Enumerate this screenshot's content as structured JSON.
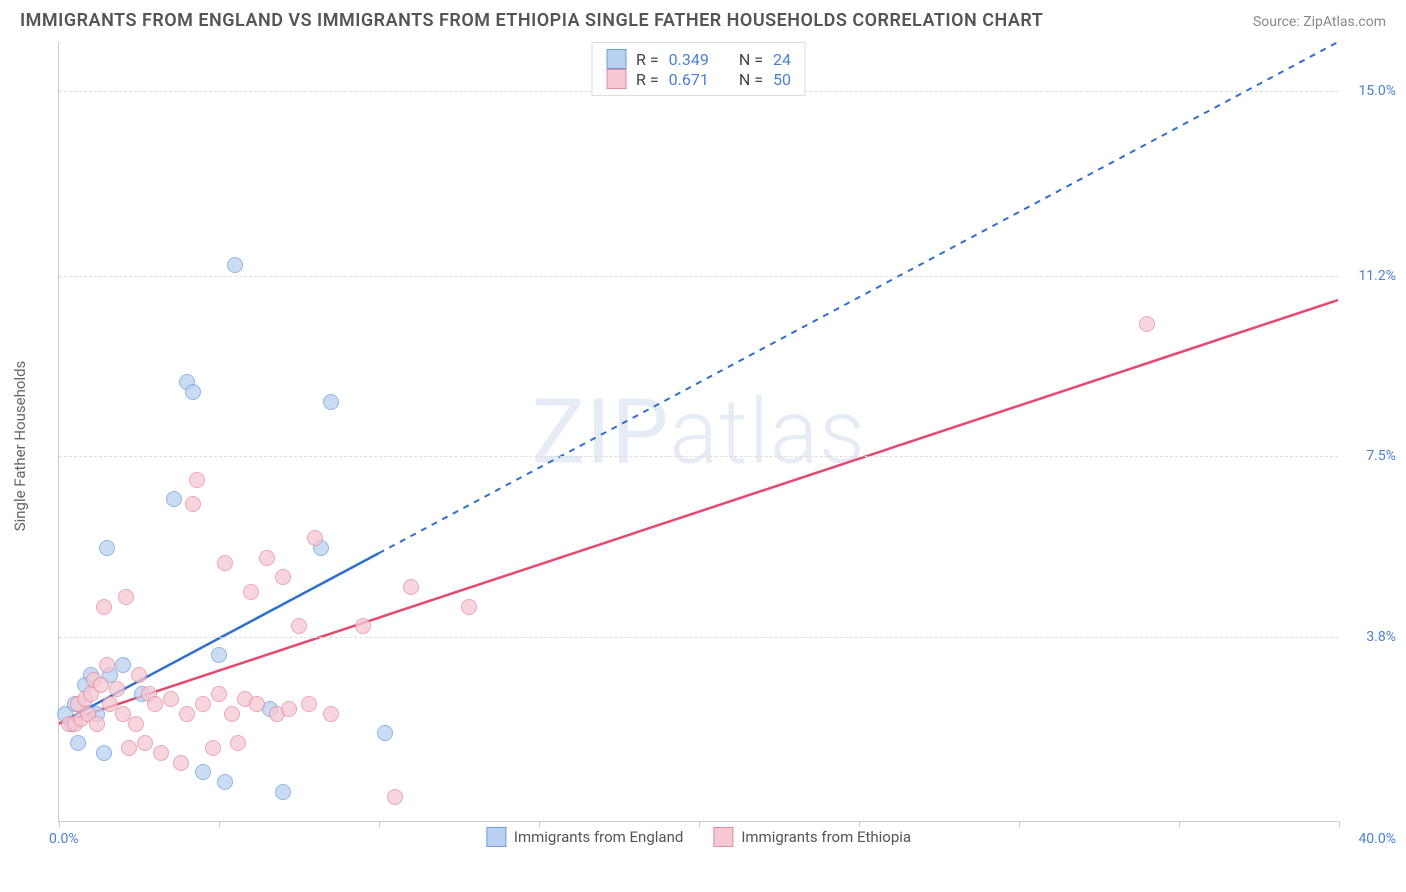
{
  "title": "IMMIGRANTS FROM ENGLAND VS IMMIGRANTS FROM ETHIOPIA SINGLE FATHER HOUSEHOLDS CORRELATION CHART",
  "source": "Source: ZipAtlas.com",
  "watermark": "ZIPatlas",
  "y_axis_title": "Single Father Households",
  "x_origin_label": "0.0%",
  "x_max_label": "40.0%",
  "chart": {
    "type": "scatter",
    "xlim": [
      0,
      40
    ],
    "ylim": [
      0,
      16
    ],
    "y_ticks": [
      {
        "pos": 3.8,
        "label": "3.8%"
      },
      {
        "pos": 7.5,
        "label": "7.5%"
      },
      {
        "pos": 11.2,
        "label": "11.2%"
      },
      {
        "pos": 15.0,
        "label": "15.0%"
      }
    ],
    "x_tick_positions": [
      0,
      5,
      10,
      15,
      20,
      25,
      30,
      35,
      40
    ],
    "grid_color": "#dddddd",
    "background_color": "#ffffff",
    "marker_size": 16,
    "series": [
      {
        "id": "england",
        "label": "Immigrants from England",
        "fill_color": "#b9d1f0",
        "stroke_color": "#6f9ede",
        "line_color": "#2f6fd0",
        "r_value": "0.349",
        "n_value": "24",
        "trend": {
          "x1": 0,
          "y1": 2.0,
          "x2": 40,
          "y2": 16.0,
          "solid_until_x": 10
        },
        "points": [
          [
            0.2,
            2.2
          ],
          [
            0.4,
            2.0
          ],
          [
            0.5,
            2.4
          ],
          [
            0.6,
            1.6
          ],
          [
            0.8,
            2.8
          ],
          [
            1.0,
            3.0
          ],
          [
            1.2,
            2.2
          ],
          [
            1.4,
            1.4
          ],
          [
            1.5,
            5.6
          ],
          [
            1.6,
            3.0
          ],
          [
            2.0,
            3.2
          ],
          [
            2.6,
            2.6
          ],
          [
            3.6,
            6.6
          ],
          [
            4.0,
            9.0
          ],
          [
            4.2,
            8.8
          ],
          [
            4.5,
            1.0
          ],
          [
            5.0,
            3.4
          ],
          [
            5.2,
            0.8
          ],
          [
            5.5,
            11.4
          ],
          [
            6.6,
            2.3
          ],
          [
            7.0,
            0.6
          ],
          [
            8.2,
            5.6
          ],
          [
            8.5,
            8.6
          ],
          [
            10.2,
            1.8
          ]
        ]
      },
      {
        "id": "ethiopia",
        "label": "Immigrants from Ethiopia",
        "fill_color": "#f5c8d2",
        "stroke_color": "#e68aa0",
        "line_color": "#e6496f",
        "r_value": "0.671",
        "n_value": "50",
        "trend": {
          "x1": 0,
          "y1": 2.0,
          "x2": 40,
          "y2": 10.7,
          "solid_until_x": 40
        },
        "points": [
          [
            0.3,
            2.0
          ],
          [
            0.5,
            2.0
          ],
          [
            0.6,
            2.4
          ],
          [
            0.7,
            2.1
          ],
          [
            0.8,
            2.5
          ],
          [
            0.9,
            2.2
          ],
          [
            1.0,
            2.6
          ],
          [
            1.1,
            2.9
          ],
          [
            1.2,
            2.0
          ],
          [
            1.3,
            2.8
          ],
          [
            1.4,
            4.4
          ],
          [
            1.5,
            3.2
          ],
          [
            1.6,
            2.4
          ],
          [
            1.8,
            2.7
          ],
          [
            2.0,
            2.2
          ],
          [
            2.1,
            4.6
          ],
          [
            2.2,
            1.5
          ],
          [
            2.4,
            2.0
          ],
          [
            2.5,
            3.0
          ],
          [
            2.7,
            1.6
          ],
          [
            2.8,
            2.6
          ],
          [
            3.0,
            2.4
          ],
          [
            3.2,
            1.4
          ],
          [
            3.5,
            2.5
          ],
          [
            3.8,
            1.2
          ],
          [
            4.0,
            2.2
          ],
          [
            4.2,
            6.5
          ],
          [
            4.3,
            7.0
          ],
          [
            4.5,
            2.4
          ],
          [
            4.8,
            1.5
          ],
          [
            5.0,
            2.6
          ],
          [
            5.2,
            5.3
          ],
          [
            5.4,
            2.2
          ],
          [
            5.6,
            1.6
          ],
          [
            5.8,
            2.5
          ],
          [
            6.0,
            4.7
          ],
          [
            6.2,
            2.4
          ],
          [
            6.5,
            5.4
          ],
          [
            6.8,
            2.2
          ],
          [
            7.0,
            5.0
          ],
          [
            7.2,
            2.3
          ],
          [
            7.5,
            4.0
          ],
          [
            7.8,
            2.4
          ],
          [
            8.0,
            5.8
          ],
          [
            8.5,
            2.2
          ],
          [
            9.5,
            4.0
          ],
          [
            10.5,
            0.5
          ],
          [
            11.0,
            4.8
          ],
          [
            12.8,
            4.4
          ],
          [
            34.0,
            10.2
          ]
        ]
      }
    ],
    "legend_r_label": "R =",
    "legend_n_label": "N ="
  }
}
